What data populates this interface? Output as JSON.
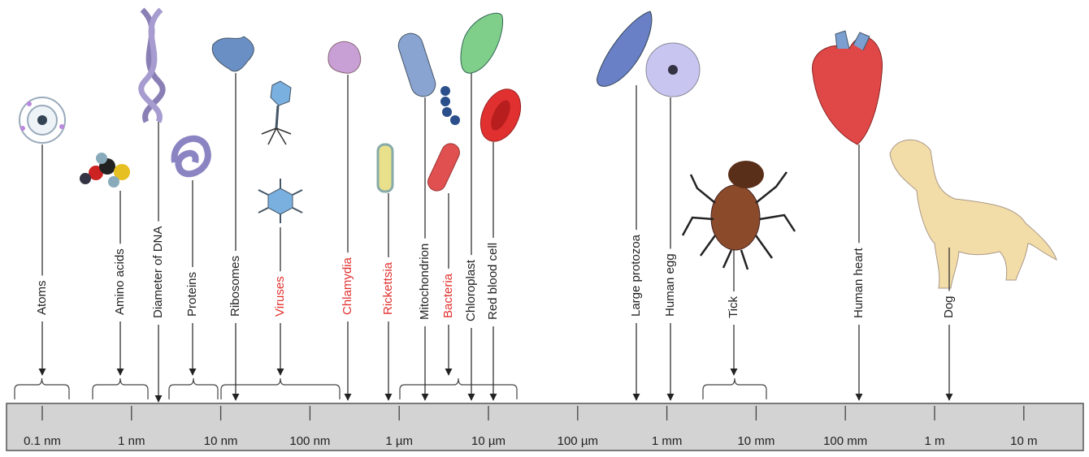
{
  "scale": {
    "ticks": [
      "0.1 nm",
      "1 nm",
      "10 nm",
      "100 nm",
      "1 µm",
      "10 µm",
      "100 µm",
      "1 mm",
      "10 mm",
      "100 mm",
      "1 m",
      "10 m"
    ]
  },
  "items": [
    {
      "label": "Atoms",
      "color": "#222222"
    },
    {
      "label": "Amino acids",
      "color": "#222222"
    },
    {
      "label": "Diameter of DNA",
      "color": "#222222"
    },
    {
      "label": "Proteins",
      "color": "#222222"
    },
    {
      "label": "Ribosomes",
      "color": "#222222"
    },
    {
      "label": "Viruses",
      "color": "#e0302e"
    },
    {
      "label": "Chlamydia",
      "color": "#e0302e"
    },
    {
      "label": "Rickettsia",
      "color": "#e0302e"
    },
    {
      "label": "Mitochondrion",
      "color": "#222222"
    },
    {
      "label": "Bacteria",
      "color": "#e0302e"
    },
    {
      "label": "Chloroplast",
      "color": "#222222"
    },
    {
      "label": "Red blood cell",
      "color": "#222222"
    },
    {
      "label": "Large protozoa",
      "color": "#222222"
    },
    {
      "label": "Human egg",
      "color": "#222222"
    },
    {
      "label": "Tick",
      "color": "#222222"
    },
    {
      "label": "Human heart",
      "color": "#222222"
    },
    {
      "label": "Dog",
      "color": "#222222"
    }
  ]
}
